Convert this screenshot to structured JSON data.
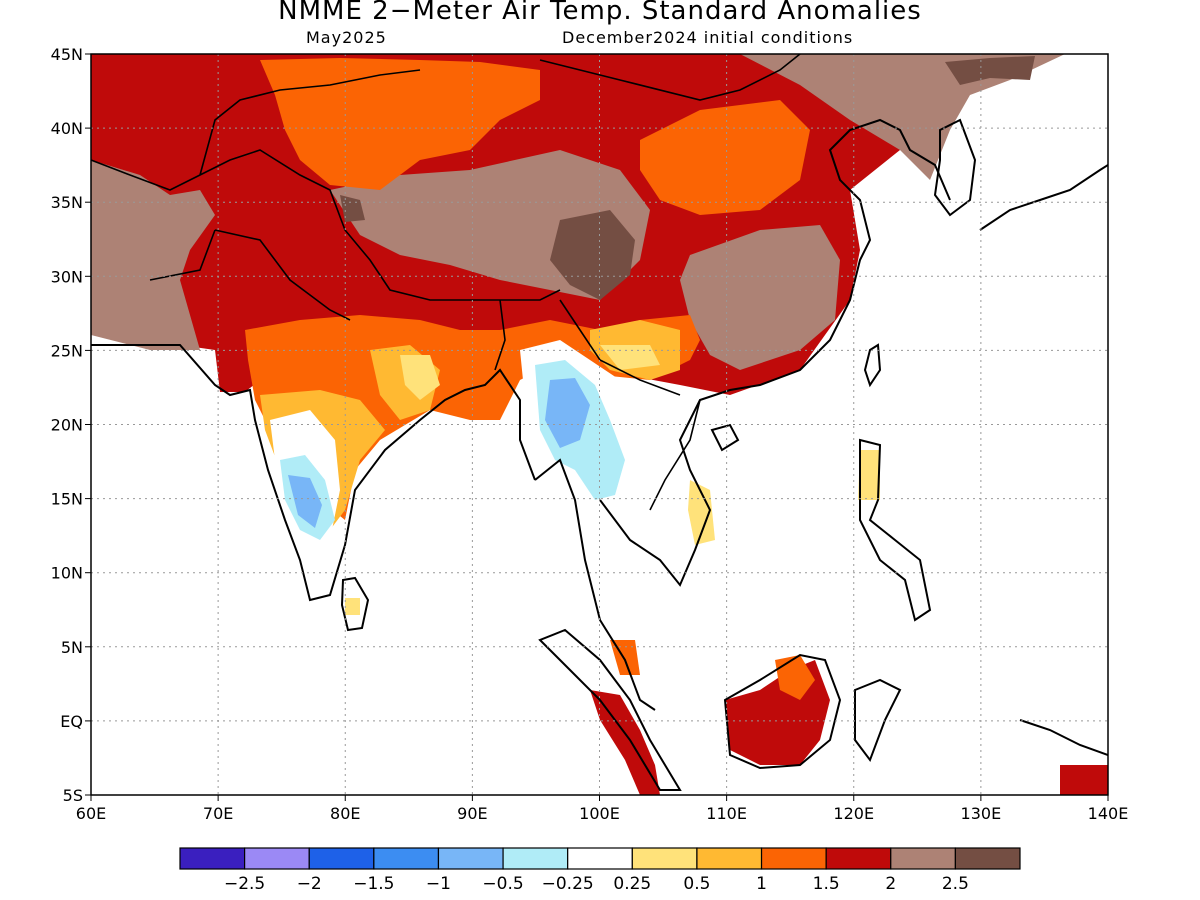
{
  "title": "NMME 2−Meter Air Temp. Standard Anomalies",
  "subtitle_left": "May2025",
  "subtitle_right": "December2024 initial conditions",
  "map": {
    "lon_range": [
      60,
      140
    ],
    "lat_range": [
      -5,
      45
    ],
    "lon_ticks": [
      {
        "value": 60,
        "label": "60E"
      },
      {
        "value": 70,
        "label": "70E"
      },
      {
        "value": 80,
        "label": "80E"
      },
      {
        "value": 90,
        "label": "90E"
      },
      {
        "value": 100,
        "label": "100E"
      },
      {
        "value": 110,
        "label": "110E"
      },
      {
        "value": 120,
        "label": "120E"
      },
      {
        "value": 130,
        "label": "130E"
      },
      {
        "value": 140,
        "label": "140E"
      }
    ],
    "lat_ticks": [
      {
        "value": 45,
        "label": "45N"
      },
      {
        "value": 40,
        "label": "40N"
      },
      {
        "value": 35,
        "label": "35N"
      },
      {
        "value": 30,
        "label": "30N"
      },
      {
        "value": 25,
        "label": "25N"
      },
      {
        "value": 20,
        "label": "20N"
      },
      {
        "value": 15,
        "label": "15N"
      },
      {
        "value": 10,
        "label": "10N"
      },
      {
        "value": 5,
        "label": "5N"
      },
      {
        "value": 0,
        "label": "EQ"
      },
      {
        "value": -5,
        "label": "5S"
      }
    ],
    "grid": true,
    "grid_style": "dotted"
  },
  "colorbar": {
    "colors": [
      "#3a1fbf",
      "#9b89f5",
      "#1e61e8",
      "#3c8df2",
      "#78b6f7",
      "#b0ecf7",
      "#ffffff",
      "#ffe27a",
      "#ffb932",
      "#fb6404",
      "#bf0a0a",
      "#ad8275",
      "#744e43"
    ],
    "labels": [
      "−2.5",
      "−2",
      "−1.5",
      "−1",
      "−0.5",
      "−0.25",
      "0.25",
      "0.5",
      "1",
      "1.5",
      "2",
      "2.5"
    ]
  }
}
